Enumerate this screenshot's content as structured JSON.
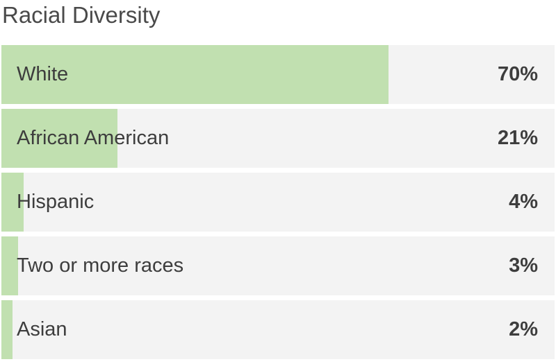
{
  "chart_data": {
    "type": "bar",
    "orientation": "horizontal",
    "title": "Racial Diversity",
    "categories": [
      "White",
      "African American",
      "Hispanic",
      "Two or more races",
      "Asian"
    ],
    "values": [
      70,
      21,
      4,
      3,
      2
    ],
    "value_labels": [
      "70%",
      "21%",
      "4%",
      "3%",
      "2%"
    ],
    "xlim": [
      0,
      100
    ],
    "bar_color": "#c1e0b0",
    "track_color": "#f3f3f3",
    "grid": false,
    "legend": "none"
  }
}
